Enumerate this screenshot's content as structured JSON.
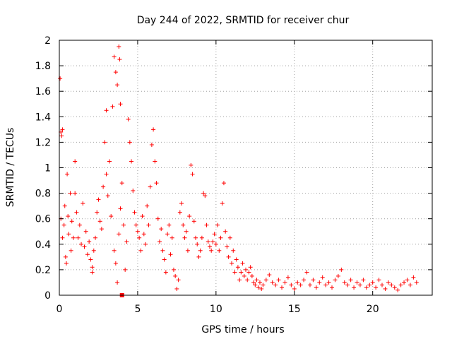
{
  "chart_data": {
    "type": "scatter",
    "title": "Day 244 of 2022, SRMTID for receiver chur",
    "xlabel": "GPS time / hours",
    "ylabel": "SRMTID / TECUs",
    "xlim": [
      0,
      23.8
    ],
    "ylim": [
      0,
      2
    ],
    "xticks": [
      0,
      5,
      10,
      15,
      20
    ],
    "yticks": [
      0,
      0.2,
      0.4,
      0.6,
      0.8,
      1,
      1.2,
      1.4,
      1.6,
      1.8,
      2
    ],
    "xtick_labels": [
      "0",
      "5",
      "10",
      "15",
      "20"
    ],
    "ytick_labels": [
      "0",
      "0.2",
      "0.4",
      "0.6",
      "0.8",
      "1",
      "1.2",
      "1.4",
      "1.6",
      "1.8",
      "2"
    ],
    "grid": true,
    "marker": "+",
    "color": "#ff0000",
    "series": [
      {
        "name": "SRMTID",
        "points": [
          [
            0.05,
            1.7
          ],
          [
            0.1,
            1.28
          ],
          [
            0.15,
            1.25
          ],
          [
            0.2,
            1.3
          ],
          [
            0.1,
            0.6
          ],
          [
            0.2,
            0.45
          ],
          [
            0.3,
            0.55
          ],
          [
            0.35,
            0.7
          ],
          [
            0.4,
            0.3
          ],
          [
            0.45,
            0.25
          ],
          [
            0.5,
            0.95
          ],
          [
            0.55,
            0.62
          ],
          [
            0.6,
            0.48
          ],
          [
            0.7,
            0.8
          ],
          [
            0.75,
            0.35
          ],
          [
            0.8,
            0.58
          ],
          [
            0.9,
            0.45
          ],
          [
            1.0,
            1.05
          ],
          [
            1.0,
            0.8
          ],
          [
            1.1,
            0.65
          ],
          [
            1.2,
            0.45
          ],
          [
            1.3,
            0.55
          ],
          [
            1.4,
            0.4
          ],
          [
            1.5,
            0.72
          ],
          [
            1.6,
            0.38
          ],
          [
            1.7,
            0.5
          ],
          [
            1.8,
            0.32
          ],
          [
            1.9,
            0.42
          ],
          [
            2.0,
            0.28
          ],
          [
            2.1,
            0.22
          ],
          [
            2.1,
            0.18
          ],
          [
            2.2,
            0.35
          ],
          [
            2.3,
            0.45
          ],
          [
            2.4,
            0.65
          ],
          [
            2.5,
            0.75
          ],
          [
            2.6,
            0.58
          ],
          [
            2.7,
            0.52
          ],
          [
            2.8,
            0.85
          ],
          [
            2.9,
            1.2
          ],
          [
            3.0,
            1.45
          ],
          [
            3.0,
            0.95
          ],
          [
            3.1,
            0.78
          ],
          [
            3.2,
            1.05
          ],
          [
            3.3,
            0.62
          ],
          [
            3.4,
            1.48
          ],
          [
            3.5,
            1.87
          ],
          [
            3.6,
            1.75
          ],
          [
            3.7,
            1.65
          ],
          [
            3.8,
            1.95
          ],
          [
            3.85,
            1.85
          ],
          [
            3.9,
            1.5
          ],
          [
            3.5,
            0.35
          ],
          [
            3.6,
            0.25
          ],
          [
            3.7,
            0.1
          ],
          [
            3.8,
            0.48
          ],
          [
            3.9,
            0.68
          ],
          [
            4.0,
            0.88
          ],
          [
            4.1,
            0.55
          ],
          [
            4.2,
            0.2
          ],
          [
            4.3,
            0.42
          ],
          [
            4.4,
            1.38
          ],
          [
            4.5,
            1.2
          ],
          [
            4.6,
            1.05
          ],
          [
            4.7,
            0.82
          ],
          [
            4.8,
            0.65
          ],
          [
            4.9,
            0.55
          ],
          [
            5.0,
            0.5
          ],
          [
            5.1,
            0.45
          ],
          [
            5.2,
            0.35
          ],
          [
            5.3,
            0.62
          ],
          [
            5.4,
            0.48
          ],
          [
            5.5,
            0.4
          ],
          [
            5.6,
            0.7
          ],
          [
            5.7,
            0.55
          ],
          [
            5.8,
            0.85
          ],
          [
            5.9,
            1.18
          ],
          [
            6.0,
            1.3
          ],
          [
            6.1,
            1.05
          ],
          [
            6.2,
            0.88
          ],
          [
            6.3,
            0.6
          ],
          [
            6.4,
            0.42
          ],
          [
            6.5,
            0.52
          ],
          [
            6.6,
            0.35
          ],
          [
            6.7,
            0.28
          ],
          [
            6.8,
            0.18
          ],
          [
            6.9,
            0.48
          ],
          [
            7.0,
            0.55
          ],
          [
            7.1,
            0.32
          ],
          [
            7.2,
            0.45
          ],
          [
            7.3,
            0.2
          ],
          [
            7.4,
            0.15
          ],
          [
            7.5,
            0.05
          ],
          [
            7.6,
            0.12
          ],
          [
            7.7,
            0.65
          ],
          [
            7.8,
            0.72
          ],
          [
            7.9,
            0.55
          ],
          [
            8.0,
            0.45
          ],
          [
            8.1,
            0.5
          ],
          [
            8.2,
            0.35
          ],
          [
            8.3,
            0.62
          ],
          [
            8.4,
            1.02
          ],
          [
            8.5,
            0.95
          ],
          [
            8.6,
            0.58
          ],
          [
            8.7,
            0.45
          ],
          [
            8.8,
            0.4
          ],
          [
            8.9,
            0.3
          ],
          [
            9.0,
            0.35
          ],
          [
            9.1,
            0.45
          ],
          [
            9.2,
            0.8
          ],
          [
            9.3,
            0.78
          ],
          [
            9.4,
            0.55
          ],
          [
            9.5,
            0.42
          ],
          [
            9.6,
            0.38
          ],
          [
            9.7,
            0.35
          ],
          [
            9.8,
            0.42
          ],
          [
            9.9,
            0.48
          ],
          [
            10.0,
            0.4
          ],
          [
            10.1,
            0.55
          ],
          [
            10.2,
            0.35
          ],
          [
            10.3,
            0.45
          ],
          [
            10.4,
            0.72
          ],
          [
            10.5,
            0.88
          ],
          [
            10.6,
            0.5
          ],
          [
            10.7,
            0.38
          ],
          [
            10.8,
            0.3
          ],
          [
            10.9,
            0.45
          ],
          [
            11.0,
            0.25
          ],
          [
            11.1,
            0.35
          ],
          [
            11.2,
            0.18
          ],
          [
            11.3,
            0.28
          ],
          [
            11.4,
            0.22
          ],
          [
            11.5,
            0.12
          ],
          [
            11.6,
            0.18
          ],
          [
            11.7,
            0.25
          ],
          [
            11.8,
            0.15
          ],
          [
            11.9,
            0.2
          ],
          [
            12.0,
            0.12
          ],
          [
            12.1,
            0.18
          ],
          [
            12.2,
            0.22
          ],
          [
            12.3,
            0.15
          ],
          [
            12.4,
            0.1
          ],
          [
            12.5,
            0.08
          ],
          [
            12.6,
            0.12
          ],
          [
            12.7,
            0.06
          ],
          [
            12.8,
            0.1
          ],
          [
            12.9,
            0.05
          ],
          [
            13.0,
            0.08
          ],
          [
            13.2,
            0.12
          ],
          [
            13.4,
            0.16
          ],
          [
            13.6,
            0.1
          ],
          [
            13.8,
            0.08
          ],
          [
            14.0,
            0.12
          ],
          [
            14.2,
            0.06
          ],
          [
            14.4,
            0.1
          ],
          [
            14.6,
            0.14
          ],
          [
            14.8,
            0.08
          ],
          [
            15.0,
            0.05
          ],
          [
            15.2,
            0.1
          ],
          [
            15.4,
            0.08
          ],
          [
            15.6,
            0.12
          ],
          [
            15.8,
            0.18
          ],
          [
            16.0,
            0.08
          ],
          [
            16.2,
            0.12
          ],
          [
            16.4,
            0.06
          ],
          [
            16.6,
            0.1
          ],
          [
            16.8,
            0.14
          ],
          [
            17.0,
            0.08
          ],
          [
            17.2,
            0.1
          ],
          [
            17.4,
            0.06
          ],
          [
            17.6,
            0.12
          ],
          [
            17.8,
            0.15
          ],
          [
            18.0,
            0.2
          ],
          [
            18.2,
            0.1
          ],
          [
            18.4,
            0.08
          ],
          [
            18.6,
            0.12
          ],
          [
            18.8,
            0.06
          ],
          [
            19.0,
            0.1
          ],
          [
            19.2,
            0.08
          ],
          [
            19.4,
            0.12
          ],
          [
            19.6,
            0.06
          ],
          [
            19.8,
            0.08
          ],
          [
            20.0,
            0.1
          ],
          [
            20.2,
            0.06
          ],
          [
            20.4,
            0.12
          ],
          [
            20.6,
            0.08
          ],
          [
            20.8,
            0.05
          ],
          [
            21.0,
            0.1
          ],
          [
            21.2,
            0.08
          ],
          [
            21.4,
            0.06
          ],
          [
            21.6,
            0.04
          ],
          [
            21.8,
            0.08
          ],
          [
            22.0,
            0.1
          ],
          [
            22.2,
            0.12
          ],
          [
            22.4,
            0.08
          ],
          [
            22.6,
            0.14
          ],
          [
            22.8,
            0.1
          ]
        ]
      }
    ],
    "annotations": [
      "filled square marker near (4.0, 0)"
    ]
  }
}
